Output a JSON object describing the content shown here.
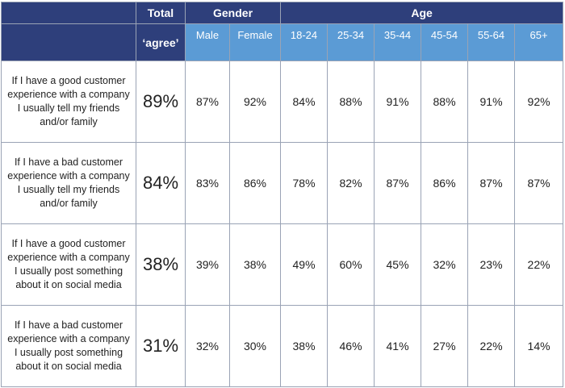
{
  "chart_data": {
    "type": "table",
    "header_groups": [
      {
        "label": "Total"
      },
      {
        "label": "Gender"
      },
      {
        "label": "Age"
      }
    ],
    "total_sublabel": "‘agree’",
    "columns": [
      "Male",
      "Female",
      "18-24",
      "25-34",
      "35-44",
      "45-54",
      "55-64",
      "65+"
    ],
    "rows": [
      {
        "question": "If I have a good customer experience with a company I usually tell my friends and/or family",
        "total": "89%",
        "values": [
          "87%",
          "92%",
          "84%",
          "88%",
          "91%",
          "88%",
          "91%",
          "92%"
        ]
      },
      {
        "question": "If I have a bad customer experience with a company I usually tell my friends and/or family",
        "total": "84%",
        "values": [
          "83%",
          "86%",
          "78%",
          "82%",
          "87%",
          "86%",
          "87%",
          "87%"
        ]
      },
      {
        "question": "If I have a good customer experience with a company I usually post something about it on social media",
        "total": "38%",
        "values": [
          "39%",
          "38%",
          "49%",
          "60%",
          "45%",
          "32%",
          "23%",
          "22%"
        ]
      },
      {
        "question": "If I have a bad customer experience with a company I usually post something about it on social media",
        "total": "31%",
        "values": [
          "32%",
          "30%",
          "38%",
          "46%",
          "41%",
          "27%",
          "22%",
          "14%"
        ]
      }
    ]
  },
  "colors": {
    "header_dark": "#2e3f7b",
    "header_light": "#5b9bd5",
    "border": "#9aa3b5"
  }
}
